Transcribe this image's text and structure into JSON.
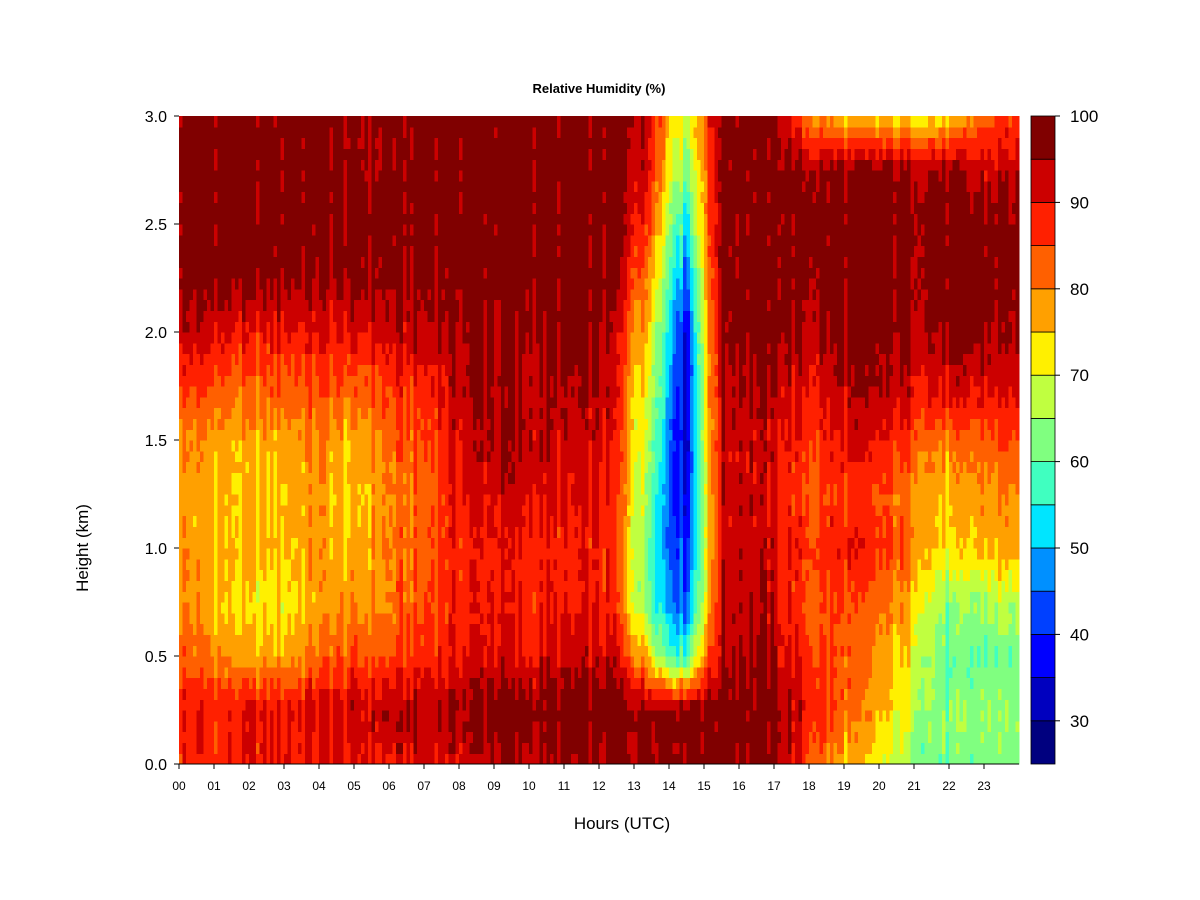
{
  "chart_data": {
    "type": "heatmap",
    "title": "Relative Humidity (%)",
    "xlabel": "Hours (UTC)",
    "ylabel": "Height (km)",
    "xlim": [
      0,
      24
    ],
    "ylim": [
      0.0,
      3.0
    ],
    "x_tick_labels": [
      "00",
      "01",
      "02",
      "03",
      "04",
      "05",
      "06",
      "07",
      "08",
      "09",
      "10",
      "11",
      "12",
      "13",
      "14",
      "15",
      "16",
      "17",
      "18",
      "19",
      "20",
      "21",
      "22",
      "23"
    ],
    "y_tick_labels": [
      "0.0",
      "0.5",
      "1.0",
      "1.5",
      "2.0",
      "2.5",
      "3.0"
    ],
    "colorbar": {
      "range": [
        25,
        100
      ],
      "step": 5,
      "tick_values": [
        30,
        40,
        50,
        60,
        70,
        80,
        90,
        100
      ],
      "tick_labels": [
        "30",
        "40",
        "50",
        "60",
        "70",
        "80",
        "90",
        "100"
      ],
      "colors": [
        "#00007F",
        "#0000BF",
        "#0000FF",
        "#0040FF",
        "#0090FF",
        "#00E5FF",
        "#40FFC0",
        "#80FF80",
        "#C0FF40",
        "#FFF000",
        "#FFA000",
        "#FF6000",
        "#FF2000",
        "#CC0000",
        "#800000"
      ]
    },
    "heights_km": [
      0.0,
      0.25,
      0.5,
      0.75,
      1.0,
      1.25,
      1.5,
      1.75,
      2.0,
      2.25,
      2.5,
      2.75,
      3.0
    ],
    "hours": [
      0,
      1,
      2,
      3,
      4,
      5,
      6,
      7,
      8,
      9,
      10,
      11,
      12,
      12.5,
      13,
      13.5,
      14,
      14.5,
      15,
      15.5,
      16,
      17,
      18,
      19,
      20,
      21,
      22,
      23,
      24
    ],
    "rh_profiles": [
      [
        88,
        90,
        84,
        80,
        80,
        78,
        80,
        86,
        94,
        97,
        98,
        98,
        98
      ],
      [
        88,
        88,
        80,
        76,
        76,
        76,
        78,
        84,
        92,
        97,
        98,
        98,
        98
      ],
      [
        88,
        90,
        76,
        72,
        76,
        74,
        76,
        82,
        88,
        97,
        98,
        98,
        98
      ],
      [
        90,
        90,
        78,
        72,
        76,
        76,
        78,
        84,
        90,
        97,
        98,
        98,
        98
      ],
      [
        90,
        92,
        82,
        78,
        78,
        78,
        80,
        84,
        90,
        96,
        98,
        98,
        98
      ],
      [
        90,
        92,
        84,
        78,
        76,
        74,
        76,
        82,
        90,
        96,
        98,
        96,
        96
      ],
      [
        90,
        94,
        84,
        80,
        80,
        80,
        82,
        86,
        92,
        96,
        98,
        96,
        96
      ],
      [
        92,
        94,
        88,
        84,
        84,
        82,
        84,
        88,
        94,
        97,
        98,
        98,
        98
      ],
      [
        92,
        96,
        90,
        88,
        88,
        90,
        92,
        94,
        96,
        98,
        98,
        98,
        98
      ],
      [
        94,
        98,
        92,
        90,
        90,
        92,
        96,
        96,
        96,
        98,
        98,
        98,
        98
      ],
      [
        94,
        98,
        90,
        88,
        88,
        92,
        94,
        94,
        96,
        98,
        98,
        98,
        98
      ],
      [
        94,
        98,
        92,
        88,
        88,
        90,
        92,
        94,
        96,
        98,
        98,
        98,
        98
      ],
      [
        96,
        98,
        92,
        88,
        88,
        90,
        92,
        94,
        96,
        98,
        98,
        98,
        98
      ],
      [
        96,
        98,
        92,
        86,
        84,
        86,
        88,
        90,
        92,
        96,
        98,
        98,
        98
      ],
      [
        96,
        98,
        80,
        70,
        70,
        72,
        74,
        76,
        80,
        86,
        90,
        94,
        96
      ],
      [
        98,
        98,
        74,
        60,
        60,
        62,
        66,
        70,
        74,
        80,
        86,
        90,
        92
      ],
      [
        98,
        98,
        60,
        48,
        46,
        44,
        46,
        50,
        54,
        60,
        66,
        72,
        78
      ],
      [
        98,
        98,
        58,
        44,
        40,
        36,
        34,
        34,
        36,
        44,
        54,
        62,
        70
      ],
      [
        98,
        98,
        80,
        70,
        68,
        68,
        70,
        70,
        72,
        74,
        78,
        80,
        82
      ],
      [
        98,
        98,
        94,
        92,
        92,
        92,
        92,
        94,
        96,
        98,
        98,
        98,
        98
      ],
      [
        98,
        98,
        96,
        94,
        94,
        94,
        94,
        96,
        98,
        98,
        98,
        98,
        98
      ],
      [
        98,
        98,
        94,
        92,
        92,
        90,
        92,
        94,
        98,
        98,
        98,
        98,
        98
      ],
      [
        84,
        90,
        86,
        84,
        86,
        84,
        86,
        90,
        94,
        97,
        98,
        96,
        80
      ],
      [
        76,
        82,
        84,
        84,
        90,
        86,
        90,
        94,
        97,
        98,
        98,
        96,
        76
      ],
      [
        70,
        76,
        78,
        80,
        86,
        84,
        90,
        94,
        97,
        98,
        98,
        96,
        74
      ],
      [
        64,
        68,
        72,
        76,
        82,
        80,
        86,
        92,
        96,
        98,
        98,
        96,
        74
      ],
      [
        60,
        62,
        58,
        62,
        72,
        74,
        80,
        90,
        96,
        98,
        98,
        96,
        72
      ],
      [
        62,
        64,
        60,
        66,
        76,
        78,
        84,
        92,
        96,
        98,
        98,
        92,
        84
      ],
      [
        62,
        64,
        62,
        68,
        78,
        80,
        86,
        92,
        96,
        98,
        98,
        94,
        86
      ]
    ]
  }
}
